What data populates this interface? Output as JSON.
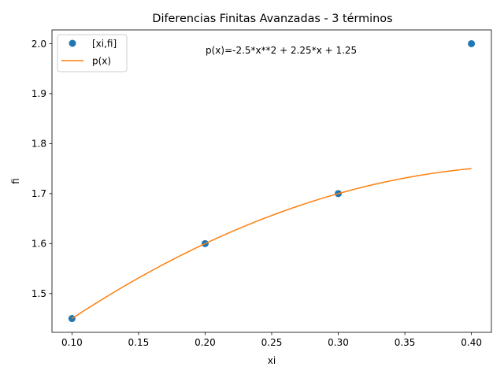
{
  "chart_data": {
    "type": "scatter+line",
    "title": "Diferencias Finitas Avanzadas - 3 términos",
    "xlabel": "xi",
    "ylabel": "fi",
    "xlim": [
      0.085,
      0.415
    ],
    "ylim": [
      1.4225,
      2.0275
    ],
    "x_ticks": [
      0.1,
      0.15,
      0.2,
      0.25,
      0.3,
      0.35,
      0.4
    ],
    "x_tick_labels": [
      "0.10",
      "0.15",
      "0.20",
      "0.25",
      "0.30",
      "0.35",
      "0.40"
    ],
    "y_ticks": [
      1.5,
      1.6,
      1.7,
      1.8,
      1.9,
      2.0
    ],
    "y_tick_labels": [
      "1.5",
      "1.6",
      "1.7",
      "1.8",
      "1.9",
      "2.0"
    ],
    "grid": false,
    "legend_position": "upper left",
    "annotation": {
      "text": "p(x)=-2.5*x**2 + 2.25*x + 1.25",
      "x": 0.2,
      "y": 1.98
    },
    "series": [
      {
        "name": "[xi,fi]",
        "kind": "scatter",
        "color": "#1f77b4",
        "x": [
          0.1,
          0.2,
          0.3,
          0.4
        ],
        "y": [
          1.45,
          1.6,
          1.7,
          2.0
        ]
      },
      {
        "name": "p(x)",
        "kind": "line",
        "color": "#ff7f0e",
        "function": {
          "a": -2.5,
          "b": 2.25,
          "c": 1.25
        },
        "x_range": [
          0.1,
          0.4
        ]
      }
    ]
  }
}
